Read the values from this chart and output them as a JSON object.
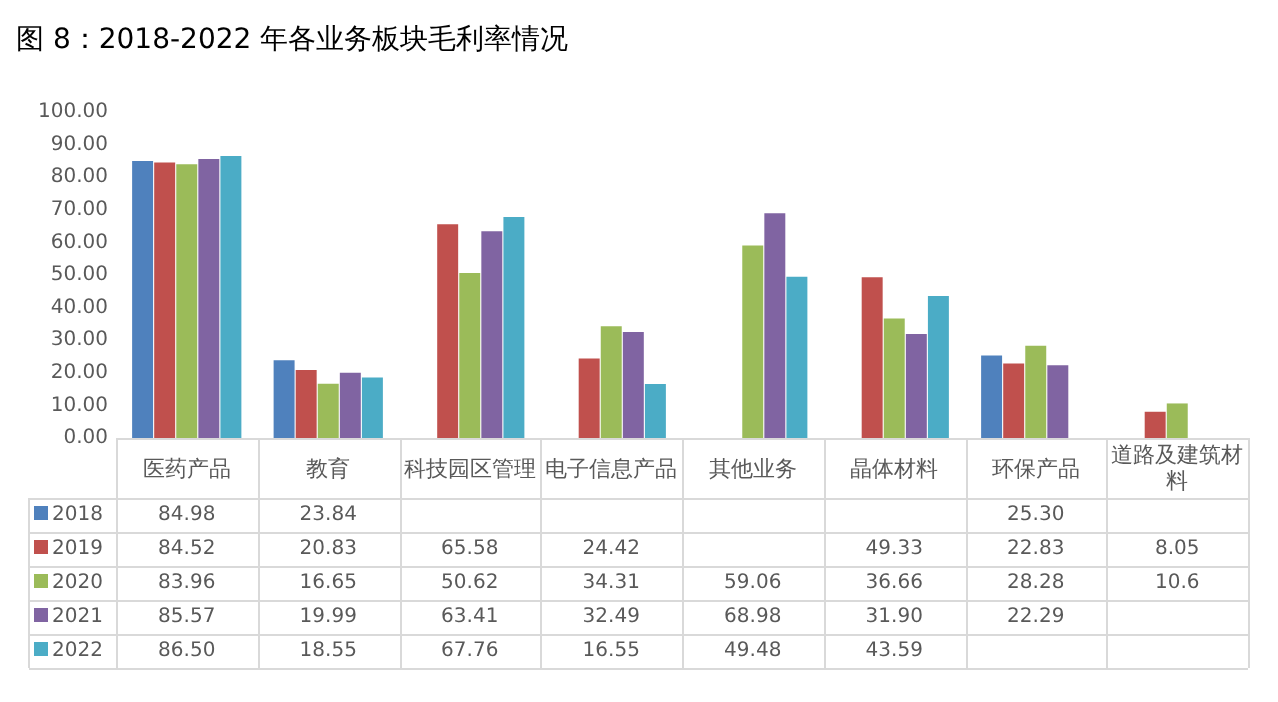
{
  "chart_data": {
    "type": "bar",
    "title": "图 8：2018-2022 年各业务板块毛利率情况",
    "categories": [
      "医药产品",
      "教育",
      "科技园区管理",
      "电子信息产品",
      "其他业务",
      "晶体材料",
      "环保产品",
      "道路及建筑材料"
    ],
    "series": [
      {
        "name": "2018",
        "color": "#4f81bd",
        "values": [
          84.98,
          23.84,
          null,
          null,
          null,
          null,
          25.3,
          null
        ],
        "value_labels": [
          "84.98",
          "23.84",
          null,
          null,
          null,
          null,
          "25.30",
          null
        ]
      },
      {
        "name": "2019",
        "color": "#c0504d",
        "values": [
          84.52,
          20.83,
          65.58,
          24.42,
          null,
          49.33,
          22.83,
          8.05
        ],
        "value_labels": [
          "84.52",
          "20.83",
          "65.58",
          "24.42",
          null,
          "49.33",
          "22.83",
          "8.05"
        ]
      },
      {
        "name": "2020",
        "color": "#9bbb59",
        "values": [
          83.96,
          16.65,
          50.62,
          34.31,
          59.06,
          36.66,
          28.28,
          10.6
        ],
        "value_labels": [
          "83.96",
          "16.65",
          "50.62",
          "34.31",
          "59.06",
          "36.66",
          "28.28",
          "10.6"
        ]
      },
      {
        "name": "2021",
        "color": "#8064a2",
        "values": [
          85.57,
          19.99,
          63.41,
          32.49,
          68.98,
          31.9,
          22.29,
          null
        ],
        "value_labels": [
          "85.57",
          "19.99",
          "63.41",
          "32.49",
          "68.98",
          "31.90",
          "22.29",
          null
        ]
      },
      {
        "name": "2022",
        "color": "#4bacc6",
        "values": [
          86.5,
          18.55,
          67.76,
          16.55,
          49.48,
          43.59,
          null,
          null
        ],
        "value_labels": [
          "86.50",
          "18.55",
          "67.76",
          "16.55",
          "49.48",
          "43.59",
          null,
          null
        ]
      }
    ],
    "ylim": [
      0,
      100
    ],
    "yticks": [
      {
        "value": 0,
        "label": "0.00"
      },
      {
        "value": 10,
        "label": "10.00"
      },
      {
        "value": 20,
        "label": "20.00"
      },
      {
        "value": 30,
        "label": "30.00"
      },
      {
        "value": 40,
        "label": "40.00"
      },
      {
        "value": 50,
        "label": "50.00"
      },
      {
        "value": 60,
        "label": "60.00"
      },
      {
        "value": 70,
        "label": "70.00"
      },
      {
        "value": 80,
        "label": "80.00"
      },
      {
        "value": 90,
        "label": "90.00"
      },
      {
        "value": 100,
        "label": "100.00"
      }
    ],
    "legend": "bottom"
  }
}
